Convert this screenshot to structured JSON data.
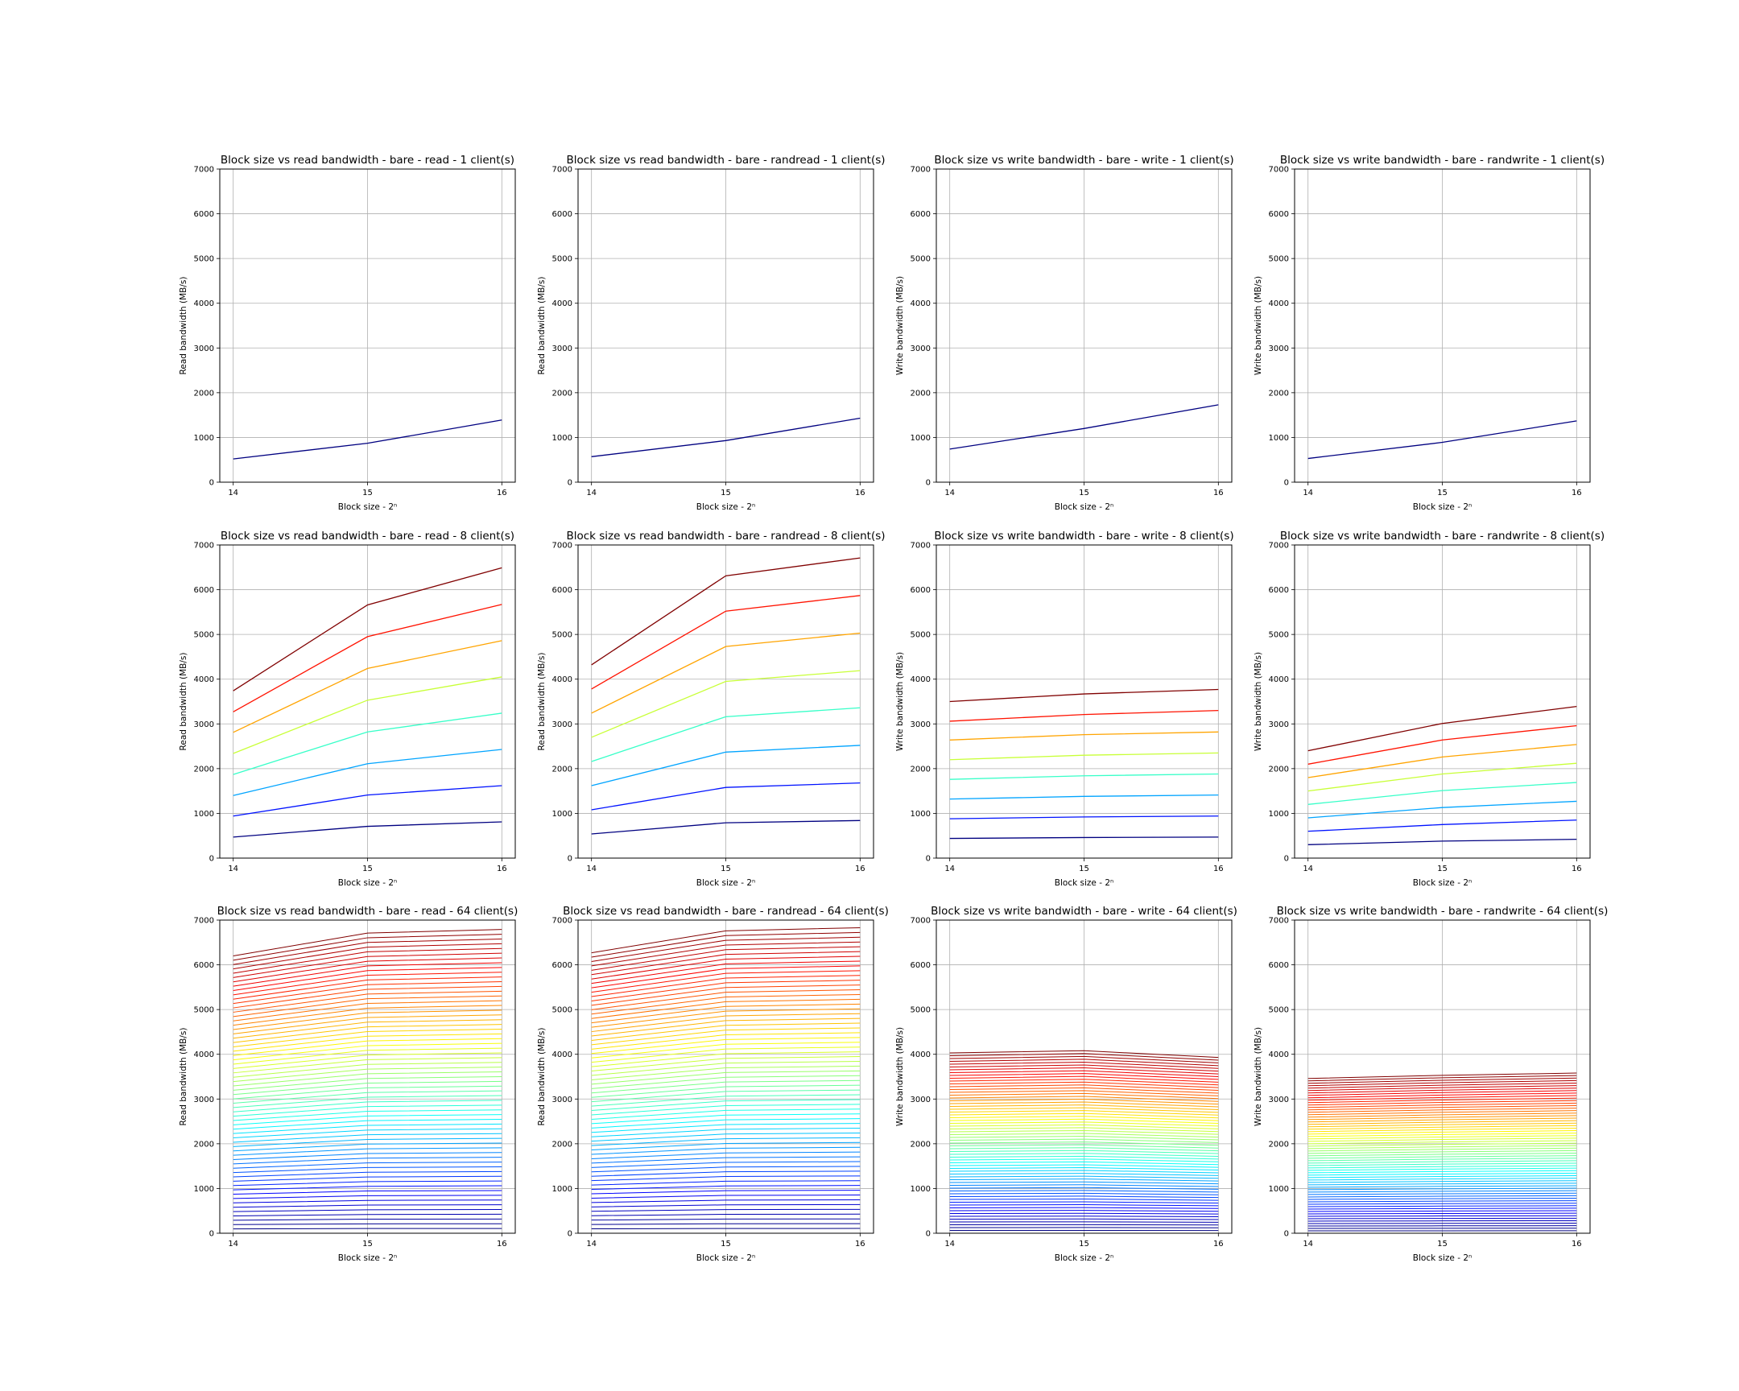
{
  "chart_data": [
    {
      "type": "line",
      "title": "Block size vs read bandwidth - bare - read - 1 client(s)",
      "xlabel": "Block size - 2ⁿ",
      "ylabel": "Read bandwidth (MB/s)",
      "x": [
        14,
        15,
        16
      ],
      "ylim": [
        0,
        7000
      ],
      "yticks": [
        0,
        1000,
        2000,
        3000,
        4000,
        5000,
        6000,
        7000
      ],
      "grid": true,
      "colormap": "jet",
      "series": [
        {
          "values": [
            520,
            870,
            1390
          ]
        }
      ]
    },
    {
      "type": "line",
      "title": "Block size vs read bandwidth - bare - randread - 1 client(s)",
      "xlabel": "Block size - 2ⁿ",
      "ylabel": "Read bandwidth (MB/s)",
      "x": [
        14,
        15,
        16
      ],
      "ylim": [
        0,
        7000
      ],
      "yticks": [
        0,
        1000,
        2000,
        3000,
        4000,
        5000,
        6000,
        7000
      ],
      "grid": true,
      "colormap": "jet",
      "series": [
        {
          "values": [
            570,
            930,
            1430
          ]
        }
      ]
    },
    {
      "type": "line",
      "title": "Block size vs write bandwidth - bare - write - 1 client(s)",
      "xlabel": "Block size - 2ⁿ",
      "ylabel": "Write bandwidth (MB/s)",
      "x": [
        14,
        15,
        16
      ],
      "ylim": [
        0,
        7000
      ],
      "yticks": [
        0,
        1000,
        2000,
        3000,
        4000,
        5000,
        6000,
        7000
      ],
      "grid": true,
      "colormap": "jet",
      "series": [
        {
          "values": [
            740,
            1200,
            1730
          ]
        }
      ]
    },
    {
      "type": "line",
      "title": "Block size vs write bandwidth - bare - randwrite - 1 client(s)",
      "xlabel": "Block size - 2ⁿ",
      "ylabel": "Write bandwidth (MB/s)",
      "x": [
        14,
        15,
        16
      ],
      "ylim": [
        0,
        7000
      ],
      "yticks": [
        0,
        1000,
        2000,
        3000,
        4000,
        5000,
        6000,
        7000
      ],
      "grid": true,
      "colormap": "jet",
      "series": [
        {
          "values": [
            530,
            890,
            1370
          ]
        }
      ]
    },
    {
      "type": "line",
      "title": "Block size vs read bandwidth - bare - read - 8 client(s)",
      "xlabel": "Block size - 2ⁿ",
      "ylabel": "Read bandwidth (MB/s)",
      "x": [
        14,
        15,
        16
      ],
      "ylim": [
        0,
        7000
      ],
      "yticks": [
        0,
        1000,
        2000,
        3000,
        4000,
        5000,
        6000,
        7000
      ],
      "grid": true,
      "colormap": "jet",
      "series": [
        {
          "values": [
            470,
            710,
            810
          ]
        },
        {
          "values": [
            940,
            1410,
            1620
          ]
        },
        {
          "values": [
            1400,
            2110,
            2430
          ]
        },
        {
          "values": [
            1870,
            2820,
            3240
          ]
        },
        {
          "values": [
            2340,
            3530,
            4050
          ]
        },
        {
          "values": [
            2810,
            4240,
            4860
          ]
        },
        {
          "values": [
            3270,
            4950,
            5670
          ]
        },
        {
          "values": [
            3740,
            5660,
            6490
          ]
        }
      ]
    },
    {
      "type": "line",
      "title": "Block size vs read bandwidth - bare - randread - 8 client(s)",
      "xlabel": "Block size - 2ⁿ",
      "ylabel": "Read bandwidth (MB/s)",
      "x": [
        14,
        15,
        16
      ],
      "ylim": [
        0,
        7000
      ],
      "yticks": [
        0,
        1000,
        2000,
        3000,
        4000,
        5000,
        6000,
        7000
      ],
      "grid": true,
      "colormap": "jet",
      "series": [
        {
          "values": [
            540,
            790,
            840
          ]
        },
        {
          "values": [
            1080,
            1580,
            1680
          ]
        },
        {
          "values": [
            1620,
            2370,
            2520
          ]
        },
        {
          "values": [
            2160,
            3160,
            3360
          ]
        },
        {
          "values": [
            2700,
            3950,
            4190
          ]
        },
        {
          "values": [
            3240,
            4730,
            5030
          ]
        },
        {
          "values": [
            3780,
            5520,
            5870
          ]
        },
        {
          "values": [
            4320,
            6310,
            6710
          ]
        }
      ]
    },
    {
      "type": "line",
      "title": "Block size vs write bandwidth - bare - write - 8 client(s)",
      "xlabel": "Block size - 2ⁿ",
      "ylabel": "Write bandwidth (MB/s)",
      "x": [
        14,
        15,
        16
      ],
      "ylim": [
        0,
        7000
      ],
      "yticks": [
        0,
        1000,
        2000,
        3000,
        4000,
        5000,
        6000,
        7000
      ],
      "grid": true,
      "colormap": "jet",
      "series": [
        {
          "values": [
            440,
            460,
            470
          ]
        },
        {
          "values": [
            880,
            920,
            940
          ]
        },
        {
          "values": [
            1320,
            1380,
            1410
          ]
        },
        {
          "values": [
            1760,
            1840,
            1880
          ]
        },
        {
          "values": [
            2200,
            2300,
            2350
          ]
        },
        {
          "values": [
            2640,
            2760,
            2820
          ]
        },
        {
          "values": [
            3060,
            3210,
            3300
          ]
        },
        {
          "values": [
            3500,
            3670,
            3770
          ]
        }
      ]
    },
    {
      "type": "line",
      "title": "Block size vs write bandwidth - bare - randwrite - 8 client(s)",
      "xlabel": "Block size - 2ⁿ",
      "ylabel": "Write bandwidth (MB/s)",
      "x": [
        14,
        15,
        16
      ],
      "ylim": [
        0,
        7000
      ],
      "yticks": [
        0,
        1000,
        2000,
        3000,
        4000,
        5000,
        6000,
        7000
      ],
      "grid": true,
      "colormap": "jet",
      "series": [
        {
          "values": [
            300,
            380,
            420
          ]
        },
        {
          "values": [
            600,
            750,
            850
          ]
        },
        {
          "values": [
            900,
            1130,
            1270
          ]
        },
        {
          "values": [
            1200,
            1510,
            1690
          ]
        },
        {
          "values": [
            1500,
            1880,
            2120
          ]
        },
        {
          "values": [
            1800,
            2260,
            2540
          ]
        },
        {
          "values": [
            2100,
            2640,
            2960
          ]
        },
        {
          "values": [
            2400,
            3010,
            3390
          ]
        }
      ]
    },
    {
      "type": "line",
      "title": "Block size vs read bandwidth - bare - read - 64 client(s)",
      "xlabel": "Block size - 2ⁿ",
      "ylabel": "Read bandwidth (MB/s)",
      "x": [
        14,
        15,
        16
      ],
      "ylim": [
        0,
        7000
      ],
      "yticks": [
        0,
        1000,
        2000,
        3000,
        4000,
        5000,
        6000,
        7000
      ],
      "grid": true,
      "colormap": "jet",
      "series_generated": {
        "count": 64,
        "first": [
          97,
          105,
          106
        ],
        "last": [
          6200,
          6710,
          6790
        ]
      }
    },
    {
      "type": "line",
      "title": "Block size vs read bandwidth - bare - randread - 64 client(s)",
      "xlabel": "Block size - 2ⁿ",
      "ylabel": "Read bandwidth (MB/s)",
      "x": [
        14,
        15,
        16
      ],
      "ylim": [
        0,
        7000
      ],
      "yticks": [
        0,
        1000,
        2000,
        3000,
        4000,
        5000,
        6000,
        7000
      ],
      "grid": true,
      "colormap": "jet",
      "series_generated": {
        "count": 64,
        "first": [
          98,
          106,
          107
        ],
        "last": [
          6270,
          6760,
          6830
        ]
      }
    },
    {
      "type": "line",
      "title": "Block size vs write bandwidth - bare - write - 64 client(s)",
      "xlabel": "Block size - 2ⁿ",
      "ylabel": "Write bandwidth (MB/s)",
      "x": [
        14,
        15,
        16
      ],
      "ylim": [
        0,
        7000
      ],
      "yticks": [
        0,
        1000,
        2000,
        3000,
        4000,
        5000,
        6000,
        7000
      ],
      "grid": true,
      "colormap": "jet",
      "series_generated": {
        "count": 64,
        "first": [
          63,
          64,
          61
        ],
        "last": [
          4030,
          4080,
          3930
        ]
      }
    },
    {
      "type": "line",
      "title": "Block size vs write bandwidth - bare - randwrite - 64 client(s)",
      "xlabel": "Block size - 2ⁿ",
      "ylabel": "Write bandwidth (MB/s)",
      "x": [
        14,
        15,
        16
      ],
      "ylim": [
        0,
        7000
      ],
      "yticks": [
        0,
        1000,
        2000,
        3000,
        4000,
        5000,
        6000,
        7000
      ],
      "grid": true,
      "colormap": "jet",
      "series_generated": {
        "count": 64,
        "first": [
          54,
          55,
          56
        ],
        "last": [
          3460,
          3530,
          3580
        ]
      }
    }
  ]
}
